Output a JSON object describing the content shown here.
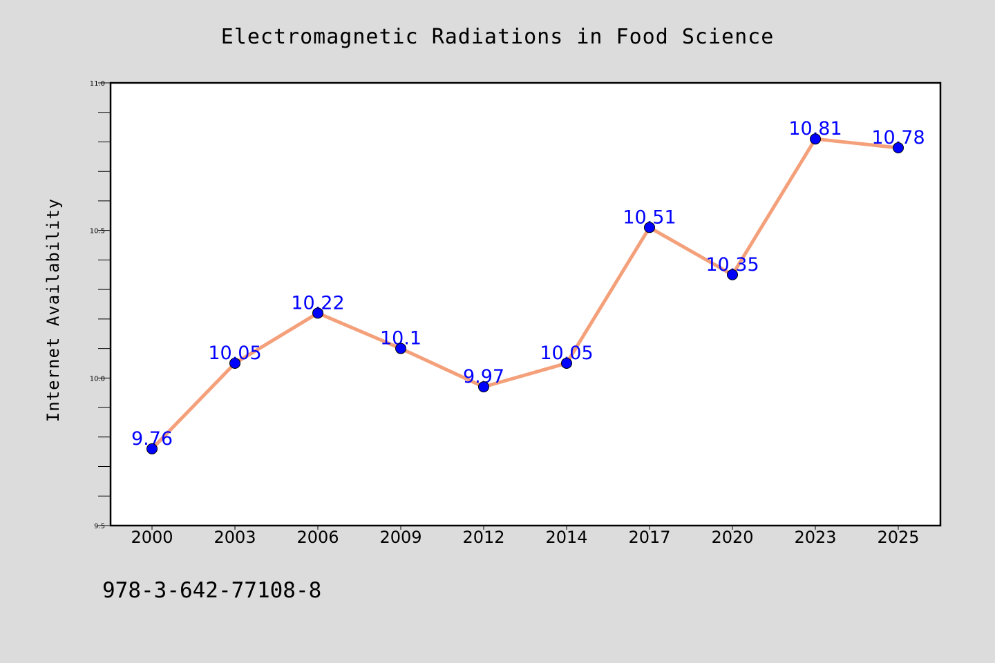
{
  "chart_data": {
    "type": "line",
    "title": "Electromagnetic Radiations in Food Science",
    "xlabel": "",
    "ylabel": "Internet Availability",
    "categories": [
      "2000",
      "2003",
      "2006",
      "2009",
      "2012",
      "2014",
      "2017",
      "2020",
      "2023",
      "2025"
    ],
    "series": [
      {
        "values": [
          9.76,
          10.05,
          10.22,
          10.1,
          9.97,
          10.05,
          10.51,
          10.35,
          10.81,
          10.78
        ],
        "data_labels": [
          "9.76",
          "10.05",
          "10.22",
          "10.1",
          "9.97",
          "10.05",
          "10.51",
          "10.35",
          "10.81",
          "10.78"
        ],
        "line_color": "#f4a07a",
        "marker_color": "#0000ff"
      }
    ],
    "ylim": [
      9.5,
      11.0
    ],
    "yticks": [
      "9.5",
      "10.0",
      "10.5",
      "11.0"
    ],
    "grid": false,
    "legend": "none"
  },
  "footer": {
    "isbn": "978-3-642-77108-8"
  },
  "colors": {
    "background": "#dcdcdc",
    "plot_background": "#ffffff",
    "line": "#f4a07a",
    "marker": "#0000ff",
    "data_label": "#0000ff"
  }
}
